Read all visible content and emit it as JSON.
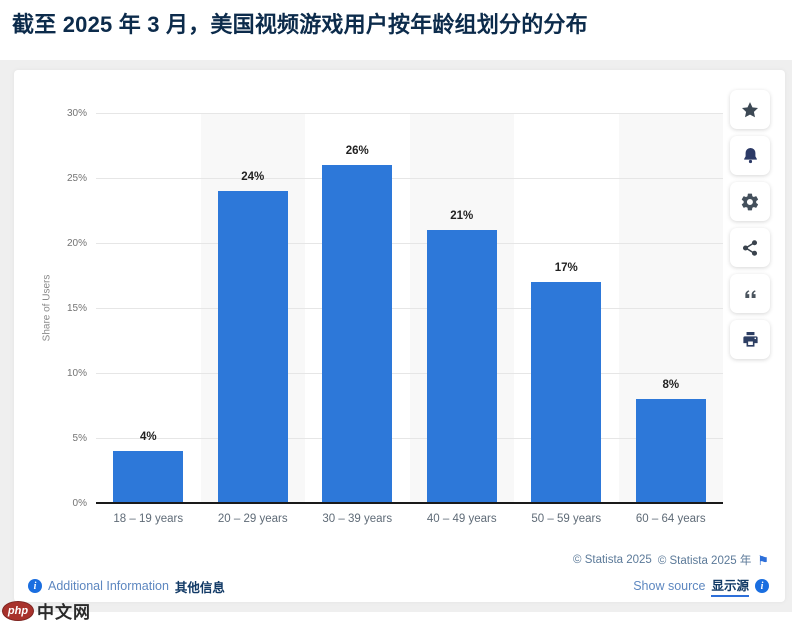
{
  "page": {
    "title": "截至 2025 年 3 月，美国视频游戏用户按年龄组划分的分布"
  },
  "chart_data": {
    "type": "bar",
    "title": "截至 2025 年 3 月，美国视频游戏用户按年龄组划分的分布",
    "categories": [
      "18 – 19 years",
      "20 – 29 years",
      "30 – 39 years",
      "40 – 49 years",
      "50 – 59 years",
      "60 – 64 years"
    ],
    "values": [
      4,
      24,
      26,
      21,
      17,
      8
    ],
    "value_labels": [
      "4%",
      "24%",
      "26%",
      "21%",
      "17%",
      "8%"
    ],
    "xlabel": "",
    "ylabel": "Share of Users",
    "ylim": [
      0,
      30
    ],
    "ytick_step": 5,
    "yticks": [
      "0%",
      "5%",
      "10%",
      "15%",
      "20%",
      "25%",
      "30%"
    ],
    "grid": true,
    "plot_bands": "alternate-columns",
    "bar_color": "#2d78d9",
    "band_color": "#f8f8f8",
    "legend": "none"
  },
  "toolbar": {
    "buttons": [
      {
        "name": "favorite-button",
        "icon": "star-icon"
      },
      {
        "name": "alert-button",
        "icon": "bell-icon"
      },
      {
        "name": "settings-button",
        "icon": "gear-icon"
      },
      {
        "name": "share-button",
        "icon": "share-icon"
      },
      {
        "name": "cite-button",
        "icon": "quote-icon"
      },
      {
        "name": "print-button",
        "icon": "printer-icon"
      }
    ]
  },
  "footer": {
    "copyright_en": "© Statista 2025",
    "copyright_zh": "© Statista 2025 年",
    "flag_icon": "flag-icon",
    "additional_info_en": "Additional Information",
    "additional_info_zh": "其他信息",
    "show_source_en": "Show source",
    "show_source_zh": "显示源",
    "info_icon": "info-icon",
    "info_icon_glyph": "i"
  },
  "watermark": {
    "badge": "php",
    "site": "中文网"
  },
  "colors": {
    "bar": "#2d78d9",
    "title": "#0c2b4b",
    "accent_blue": "#1a6ee0",
    "page_band_gray": "#efefef"
  }
}
